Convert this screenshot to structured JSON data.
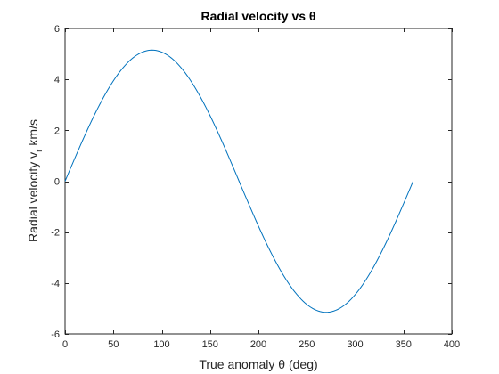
{
  "chart_data": {
    "type": "line",
    "title": "Radial velocity vs θ",
    "xlabel": "True anomaly θ (deg)",
    "ylabel": "Radial velocity v_r km/s",
    "ylabel_main": "Radial velocity v",
    "ylabel_sub": "r",
    "ylabel_unit": " km/s",
    "xlim": [
      0,
      400
    ],
    "ylim": [
      -6,
      6
    ],
    "xticks": [
      0,
      50,
      100,
      150,
      200,
      250,
      300,
      350,
      400
    ],
    "yticks": [
      -6,
      -4,
      -2,
      0,
      2,
      4,
      6
    ],
    "grid": false,
    "legend": "none",
    "series": [
      {
        "color": "#0072BD",
        "amplitude": 5.15,
        "x": [
          0,
          10,
          20,
          30,
          40,
          50,
          60,
          70,
          80,
          90,
          100,
          110,
          120,
          130,
          140,
          150,
          160,
          170,
          180,
          190,
          200,
          210,
          220,
          230,
          240,
          250,
          260,
          270,
          280,
          290,
          300,
          310,
          320,
          330,
          340,
          350,
          360
        ],
        "y": [
          0,
          0.894,
          1.761,
          2.575,
          3.31,
          3.945,
          4.46,
          4.839,
          5.072,
          5.15,
          5.072,
          4.839,
          4.46,
          3.945,
          3.31,
          2.575,
          1.761,
          0.894,
          0,
          -0.894,
          -1.761,
          -2.575,
          -3.31,
          -3.945,
          -4.46,
          -4.839,
          -5.072,
          -5.15,
          -5.072,
          -4.839,
          -4.46,
          -3.945,
          -3.31,
          -2.575,
          -1.761,
          -0.894,
          0
        ]
      }
    ]
  }
}
